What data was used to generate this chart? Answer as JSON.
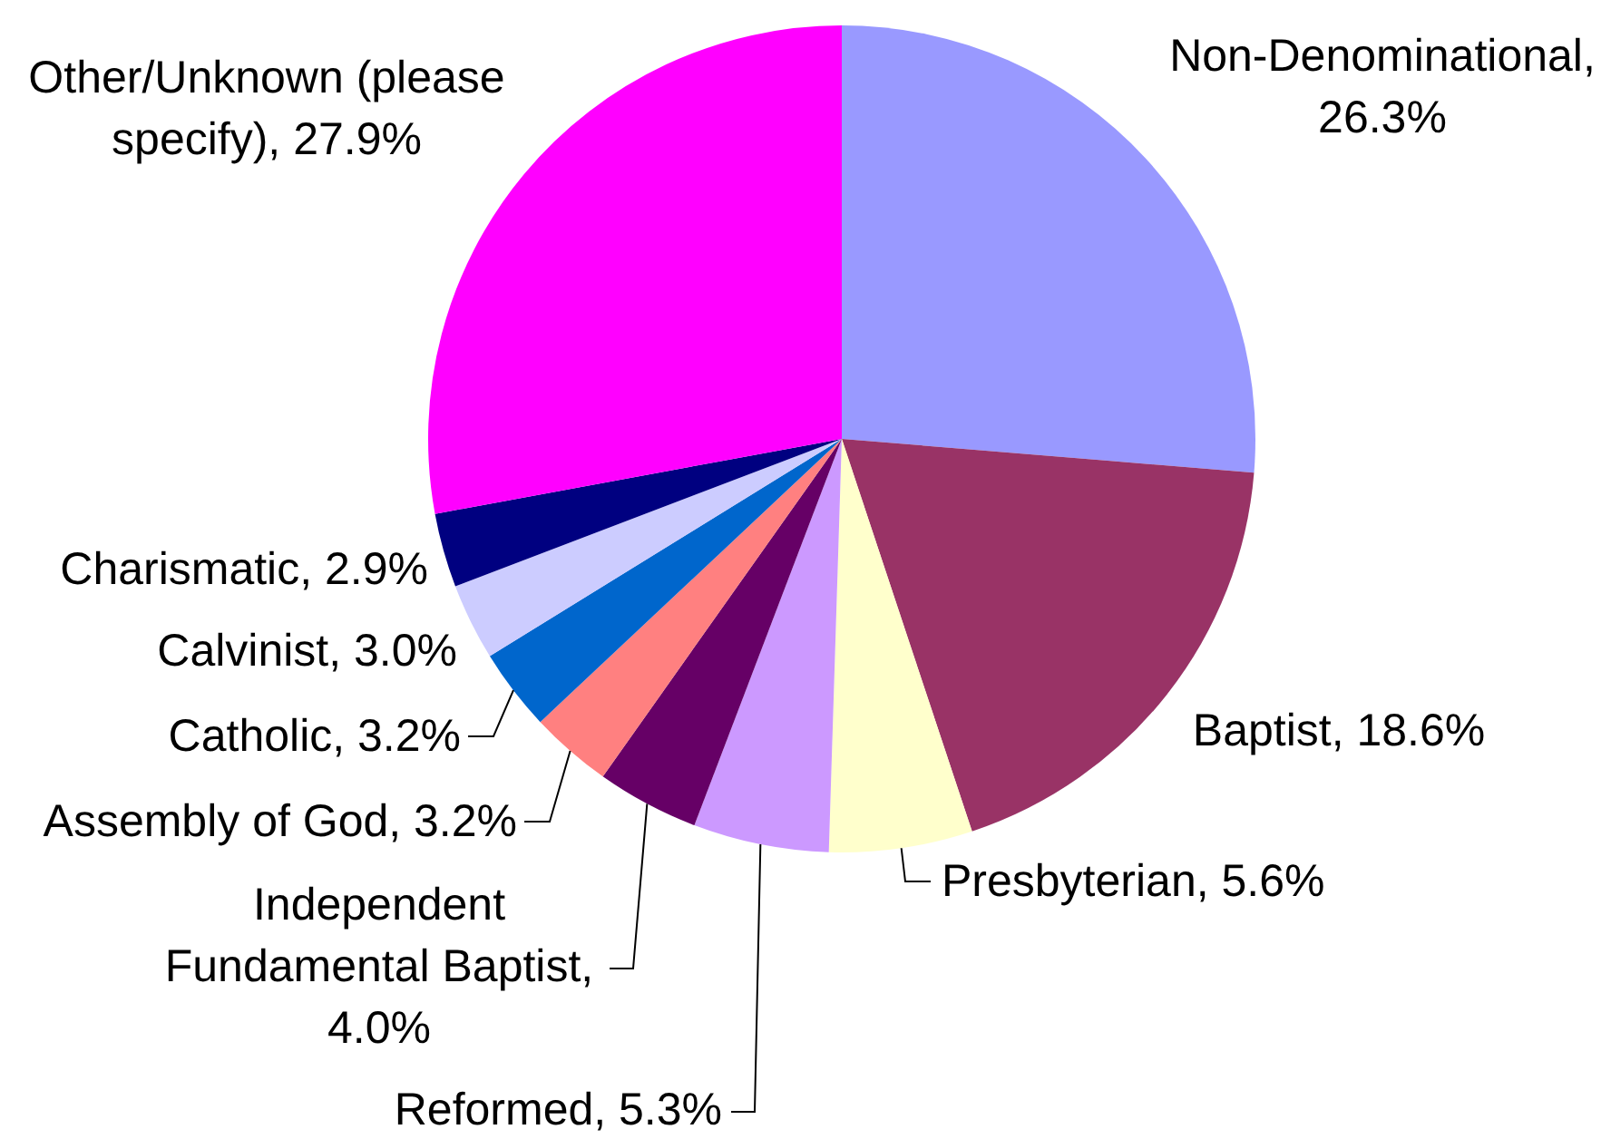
{
  "chart_data": {
    "type": "pie",
    "categories": [
      "Non-Denominational, 26.3%",
      "Baptist, 18.6%",
      "Presbyterian, 5.6%",
      "Reformed, 5.3%",
      "Independent Fundamental Baptist, 4.0%",
      "Assembly of God, 3.2%",
      "Catholic, 3.2%",
      "Calvinist, 3.0%",
      "Charismatic, 2.9%",
      "Other/Unknown (please specify), 27.9%"
    ],
    "values": [
      26.3,
      18.6,
      5.6,
      5.3,
      4.0,
      3.2,
      3.2,
      3.0,
      2.9,
      27.9
    ],
    "colors": [
      "#9999ff",
      "#993366",
      "#ffffcc",
      "#cc99ff",
      "#660066",
      "#ff8080",
      "#0066cc",
      "#ccccff",
      "#000080",
      "#ff00ff"
    ]
  }
}
